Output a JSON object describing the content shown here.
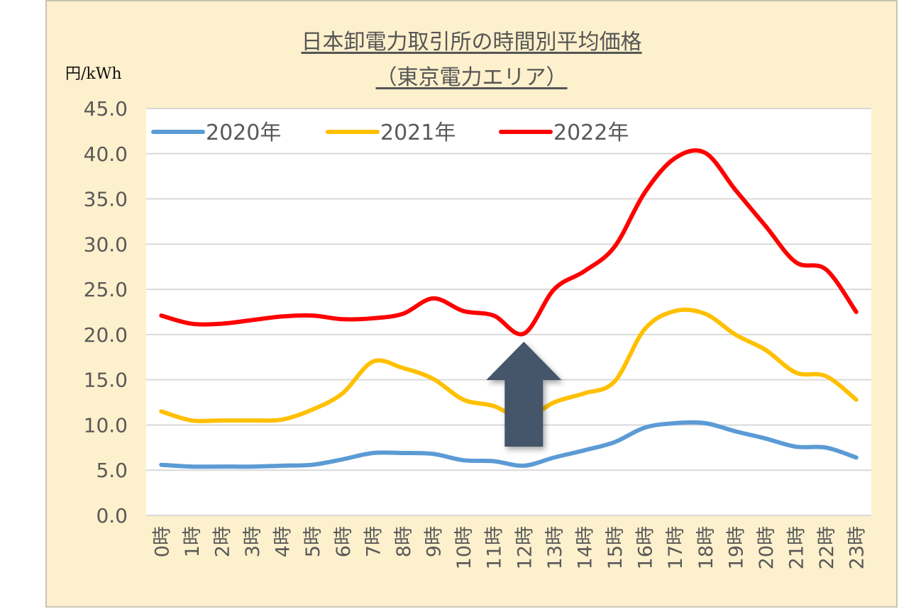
{
  "chart_data": {
    "type": "line",
    "title_line1": "日本卸電力取引所の時間別平均価格",
    "title_line2": "（東京電力エリア）",
    "ylabel": "円/kWh",
    "ylim": [
      0,
      45
    ],
    "yticks": [
      "0.0",
      "5.0",
      "10.0",
      "15.0",
      "20.0",
      "25.0",
      "30.0",
      "35.0",
      "40.0",
      "45.0"
    ],
    "categories": [
      "0時",
      "1時",
      "2時",
      "3時",
      "4時",
      "5時",
      "6時",
      "7時",
      "8時",
      "9時",
      "10時",
      "11時",
      "12時",
      "13時",
      "14時",
      "15時",
      "16時",
      "17時",
      "18時",
      "19時",
      "20時",
      "21時",
      "22時",
      "23時"
    ],
    "series": [
      {
        "name": "2020年",
        "color": "#5b9bd5",
        "values": [
          5.6,
          5.4,
          5.4,
          5.4,
          5.5,
          5.6,
          6.2,
          6.9,
          6.9,
          6.8,
          6.1,
          6.0,
          5.5,
          6.4,
          7.2,
          8.1,
          9.7,
          10.2,
          10.2,
          9.3,
          8.5,
          7.6,
          7.5,
          6.4
        ]
      },
      {
        "name": "2021年",
        "color": "#ffc000",
        "values": [
          11.5,
          10.5,
          10.5,
          10.5,
          10.6,
          11.7,
          13.5,
          17.0,
          16.3,
          15.1,
          12.8,
          12.1,
          10.7,
          12.5,
          13.5,
          14.8,
          20.6,
          22.6,
          22.3,
          20.0,
          18.3,
          15.8,
          15.4,
          12.8
        ]
      },
      {
        "name": "2022年",
        "color": "#ff0000",
        "values": [
          22.1,
          21.2,
          21.2,
          21.6,
          22.0,
          22.1,
          21.7,
          21.8,
          22.3,
          24.0,
          22.6,
          22.1,
          20.1,
          25.0,
          27.0,
          29.7,
          35.7,
          39.5,
          40.1,
          36.0,
          32.0,
          28.0,
          27.2,
          22.5
        ]
      }
    ],
    "legend_position": "top-left",
    "annotation": "up-arrow-at-12時",
    "arrow_color": "#44546a",
    "grid_color": "#d9d9d9",
    "text_color": "#595959"
  }
}
